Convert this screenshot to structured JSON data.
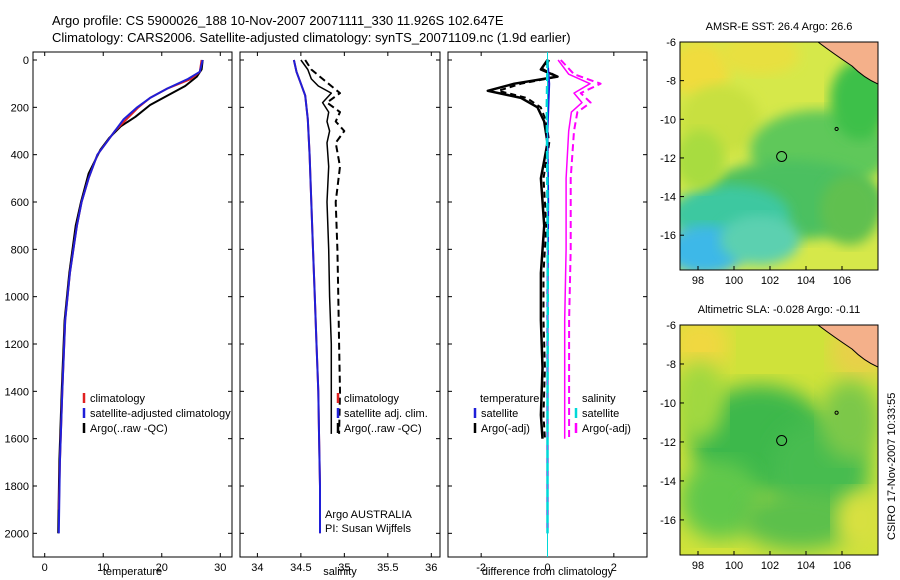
{
  "header": {
    "line1": "Argo profile: CS 5900026_188 10-Nov-2007 20071111_330 11.926S 102.647E",
    "line2": "Climatology: CARS2006. Satellite-adjusted climatology: synTS_20071109.nc (1.9d earlier)"
  },
  "side_label": "CSIRO 17-Nov-2007 10:33:55",
  "colors": {
    "climatology": "#e02020",
    "satellite": "#1f1fd8",
    "argo": "#000000",
    "diff_temp_sat": "#1f1fd8",
    "diff_sal": "#ff00ff",
    "diff_sal_sat": "#00d8d8"
  },
  "chart_data": [
    {
      "type": "line",
      "id": "temperature",
      "xlabel": "temperature",
      "ylabel": "",
      "xlim": [
        -2,
        32
      ],
      "ylim": [
        2100,
        0
      ],
      "xticks": [
        0,
        10,
        20,
        30
      ],
      "yticks": [
        0,
        200,
        400,
        600,
        800,
        1000,
        1200,
        1400,
        1600,
        1800,
        2000
      ],
      "legend": {
        "placement": "bottom-right",
        "entries": [
          "climatology",
          "satellite-adjusted climatology",
          "Argo(..raw -QC)"
        ]
      },
      "series": [
        {
          "name": "climatology",
          "x": [
            26.8,
            26.5,
            25,
            21,
            18,
            16,
            14,
            12,
            10.5,
            9,
            7.5,
            6.3,
            5.5,
            4.3,
            3.5,
            3.0,
            2.6,
            2.4
          ],
          "y": [
            0,
            50,
            80,
            120,
            160,
            200,
            250,
            300,
            350,
            400,
            500,
            600,
            700,
            900,
            1100,
            1400,
            1700,
            1900
          ]
        },
        {
          "name": "satellite-adjusted climatology",
          "x": [
            27,
            26.5,
            24.5,
            21,
            18,
            15.8,
            13.5,
            12,
            10.5,
            9,
            7.5,
            6.3,
            5.5,
            4.3,
            3.5,
            3.0,
            2.6,
            2.4
          ],
          "y": [
            0,
            50,
            80,
            120,
            160,
            200,
            250,
            300,
            350,
            400,
            500,
            600,
            700,
            900,
            1100,
            1400,
            1700,
            2000
          ]
        },
        {
          "name": "Argo(..raw -QC)",
          "x": [
            27,
            26.8,
            26,
            24,
            21,
            18,
            15.5,
            13,
            11,
            9.5,
            7.5,
            6.2,
            5.3,
            4.2,
            3.4,
            2.9,
            2.5,
            2.3
          ],
          "y": [
            0,
            40,
            70,
            110,
            150,
            190,
            240,
            280,
            330,
            380,
            480,
            600,
            700,
            900,
            1100,
            1400,
            1700,
            2000
          ]
        }
      ]
    },
    {
      "type": "line",
      "id": "salinity",
      "xlabel": "salinity",
      "ylabel": "",
      "xlim": [
        33.8,
        36.1
      ],
      "ylim": [
        2100,
        0
      ],
      "xticks": [
        34,
        34.5,
        35,
        35.5,
        36
      ],
      "xticklabels": [
        "34",
        "34.5",
        "35",
        "35.5",
        "36"
      ],
      "legend": {
        "placement": "bottom-right",
        "entries": [
          "climatology",
          "satellite adj. clim.",
          "Argo(..raw -QC)"
        ]
      },
      "annotations": [
        "Argo AUSTRALIA",
        "PI: Susan Wijffels"
      ],
      "series": [
        {
          "name": "climatology",
          "x": [
            34.42,
            34.45,
            34.5,
            34.55,
            34.58,
            34.6,
            34.62,
            34.64,
            34.66,
            34.68,
            34.7,
            34.71,
            34.72,
            34.72
          ],
          "y": [
            0,
            50,
            100,
            150,
            250,
            400,
            600,
            800,
            1000,
            1200,
            1400,
            1600,
            1800,
            2000
          ]
        },
        {
          "name": "satellite adj. clim.",
          "x": [
            34.42,
            34.45,
            34.5,
            34.55,
            34.58,
            34.6,
            34.62,
            34.64,
            34.66,
            34.68,
            34.7,
            34.71,
            34.72,
            34.72
          ],
          "y": [
            0,
            50,
            100,
            150,
            250,
            400,
            600,
            800,
            1000,
            1200,
            1400,
            1600,
            1800,
            2000
          ]
        },
        {
          "name": "Argo(..raw -QC)",
          "x": [
            34.55,
            34.62,
            34.75,
            34.85,
            34.95,
            34.8,
            34.95,
            34.9,
            35.0,
            34.9,
            34.95,
            34.9,
            34.92,
            34.93,
            34.94,
            34.95,
            34.94
          ],
          "y": [
            0,
            40,
            80,
            110,
            140,
            180,
            220,
            260,
            300,
            350,
            450,
            600,
            800,
            1000,
            1200,
            1400,
            1580
          ]
        },
        {
          "name": "Argo(-adj)",
          "x": [
            34.5,
            34.58,
            34.62,
            34.7,
            34.85,
            34.75,
            34.82,
            34.8,
            34.83,
            34.8,
            34.82,
            34.8,
            34.82,
            34.83,
            34.85,
            34.85
          ],
          "y": [
            0,
            40,
            80,
            110,
            140,
            180,
            220,
            260,
            300,
            350,
            450,
            600,
            800,
            1000,
            1200,
            1580
          ]
        }
      ]
    },
    {
      "type": "line",
      "id": "difference",
      "xlabel": "difference from climatology",
      "ylabel": "",
      "xlim": [
        -3,
        3
      ],
      "ylim": [
        2100,
        0
      ],
      "xticks": [
        -2,
        0,
        2
      ],
      "legend": {
        "placement": "bottom",
        "entries": [
          "temperature",
          "satellite",
          "Argo(-adj)",
          "salinity",
          "satellite",
          "Argo(-adj)"
        ]
      },
      "series": [
        {
          "name": "temperature Argo",
          "x": [
            0,
            -0.2,
            0.3,
            -1.0,
            -1.8,
            -0.8,
            -0.3,
            -0.1,
            0.0,
            -0.2,
            -0.1,
            -0.2,
            -0.2,
            -0.15,
            -0.2,
            -0.15
          ],
          "y": [
            0,
            40,
            70,
            100,
            130,
            160,
            200,
            260,
            350,
            500,
            700,
            900,
            1100,
            1300,
            1500,
            1600
          ]
        },
        {
          "name": "temperature satellite",
          "x": [
            0,
            0.05,
            0.0,
            0.02,
            0.0,
            0.0,
            0.0
          ],
          "y": [
            0,
            100,
            300,
            600,
            1000,
            1500,
            2000
          ]
        },
        {
          "name": "salinity Argo",
          "x": [
            0.4,
            0.8,
            1.6,
            1.0,
            1.3,
            0.9,
            0.8,
            0.7,
            0.7,
            0.65,
            0.65,
            0.65,
            0.65
          ],
          "y": [
            0,
            60,
            100,
            140,
            180,
            220,
            300,
            500,
            800,
            1100,
            1300,
            1500,
            1600
          ]
        },
        {
          "name": "salinity satellite",
          "x": [
            0,
            -0.02,
            0.0,
            0.01,
            0.0,
            0.0
          ],
          "y": [
            0,
            200,
            600,
            1000,
            1500,
            2000
          ]
        }
      ]
    },
    {
      "type": "heatmap",
      "id": "sst_map",
      "title": "AMSR-E SST: 26.4 Argo: 26.6",
      "xlim": [
        97,
        108
      ],
      "ylim": [
        -17.8,
        -6
      ],
      "xticks": [
        98,
        100,
        102,
        104,
        106
      ],
      "yticks": [
        -6,
        -8,
        -10,
        -12,
        -14,
        -16
      ],
      "marker": {
        "lon": 102.647,
        "lat": -11.926
      }
    },
    {
      "type": "heatmap",
      "id": "sla_map",
      "title": "Altimetric SLA: -0.028 Argo: -0.11",
      "xlim": [
        97,
        108
      ],
      "ylim": [
        -17.8,
        -6
      ],
      "xticks": [
        98,
        100,
        102,
        104,
        106
      ],
      "yticks": [
        -6,
        -8,
        -10,
        -12,
        -14,
        -16
      ],
      "marker": {
        "lon": 102.647,
        "lat": -11.926
      }
    }
  ]
}
